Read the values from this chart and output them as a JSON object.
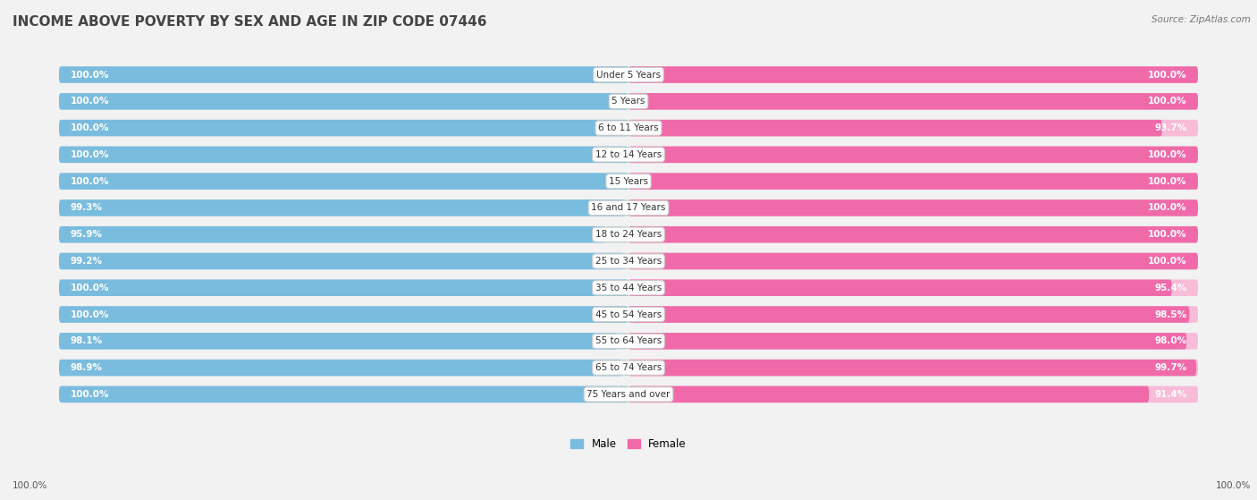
{
  "title": "INCOME ABOVE POVERTY BY SEX AND AGE IN ZIP CODE 07446",
  "source": "Source: ZipAtlas.com",
  "categories": [
    "Under 5 Years",
    "5 Years",
    "6 to 11 Years",
    "12 to 14 Years",
    "15 Years",
    "16 and 17 Years",
    "18 to 24 Years",
    "25 to 34 Years",
    "35 to 44 Years",
    "45 to 54 Years",
    "55 to 64 Years",
    "65 to 74 Years",
    "75 Years and over"
  ],
  "male_values": [
    100.0,
    100.0,
    100.0,
    100.0,
    100.0,
    99.3,
    95.9,
    99.2,
    100.0,
    100.0,
    98.1,
    98.9,
    100.0
  ],
  "female_values": [
    100.0,
    100.0,
    93.7,
    100.0,
    100.0,
    100.0,
    100.0,
    100.0,
    95.4,
    98.5,
    98.0,
    99.7,
    91.4
  ],
  "male_color_full": "#7abcde",
  "male_color_light": "#c5dff0",
  "female_color_full": "#f06aaa",
  "female_color_light": "#f8bbd8",
  "bg_color": "#f2f2f2",
  "row_bg": "#e8e8e8",
  "title_fontsize": 11,
  "label_fontsize": 7.5,
  "value_fontsize": 7.5,
  "legend_fontsize": 8.5,
  "extra_female_value": "100.0%",
  "extra_male_value": "100.0%"
}
